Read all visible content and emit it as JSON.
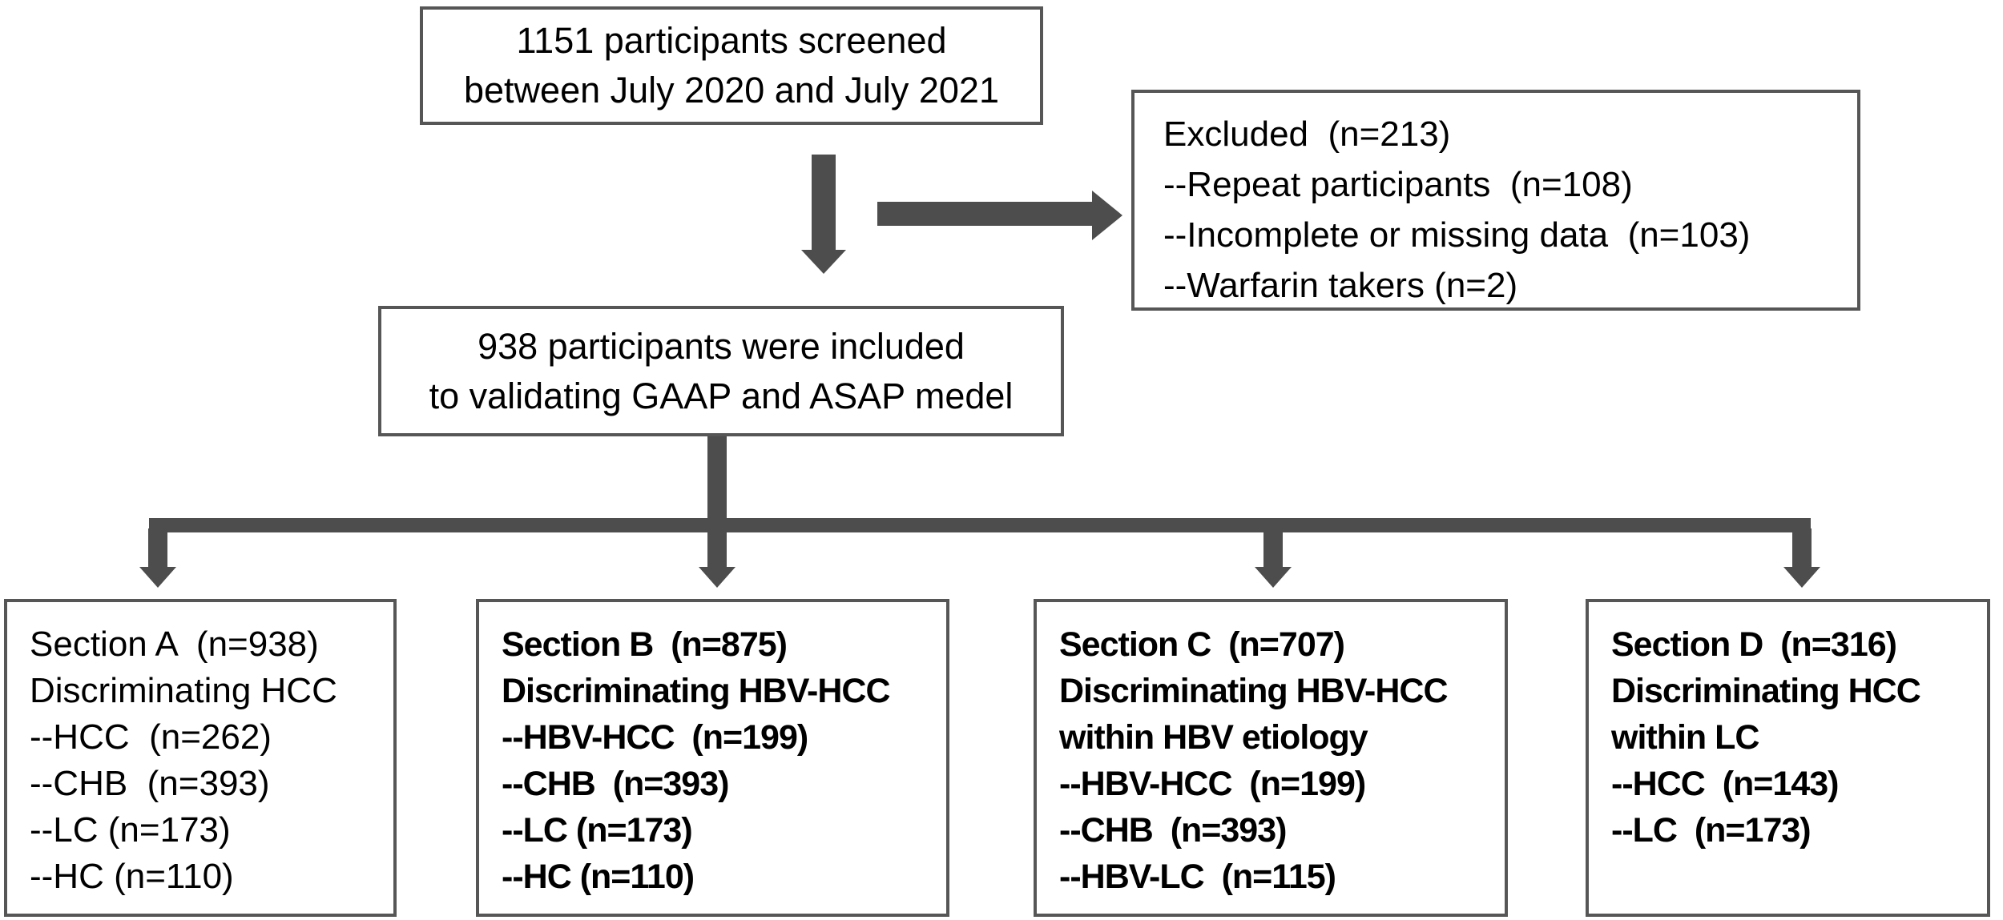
{
  "figure": {
    "background": "#ffffff",
    "arrow_color": "#4d4d4d",
    "border_color": "#565656",
    "text_color": "#000000",
    "screened_box": {
      "lines": [
        "1151 participants screened",
        "between July 2020 and July 2021"
      ]
    },
    "excluded_box": {
      "lines": [
        "Excluded  (n=213)",
        "--Repeat participants  (n=108)",
        "--Incomplete or missing data  (n=103)",
        "--Warfarin takers (n=2)"
      ]
    },
    "included_box": {
      "lines": [
        "938 participants were included",
        "to validating GAAP and ASAP medel"
      ]
    },
    "sections": [
      {
        "id": "A",
        "lines": [
          "Section A  (n=938)",
          "Discriminating HCC",
          "--HCC  (n=262)",
          "--CHB  (n=393)",
          "--LC (n=173)",
          "--HC (n=110)"
        ]
      },
      {
        "id": "B",
        "lines": [
          "Section B  (n=875)",
          "Discriminating HBV-HCC",
          "--HBV-HCC  (n=199)",
          "--CHB  (n=393)",
          "--LC (n=173)",
          "--HC (n=110)"
        ]
      },
      {
        "id": "C",
        "lines": [
          "Section C  (n=707)",
          "Discriminating HBV-HCC",
          "within HBV etiology",
          "--HBV-HCC  (n=199)",
          "--CHB  (n=393)",
          "--HBV-LC  (n=115)"
        ]
      },
      {
        "id": "D",
        "lines": [
          "Section D  (n=316)",
          "Discriminating HCC",
          "within LC",
          "--HCC  (n=143)",
          "--LC  (n=173)"
        ]
      }
    ]
  }
}
